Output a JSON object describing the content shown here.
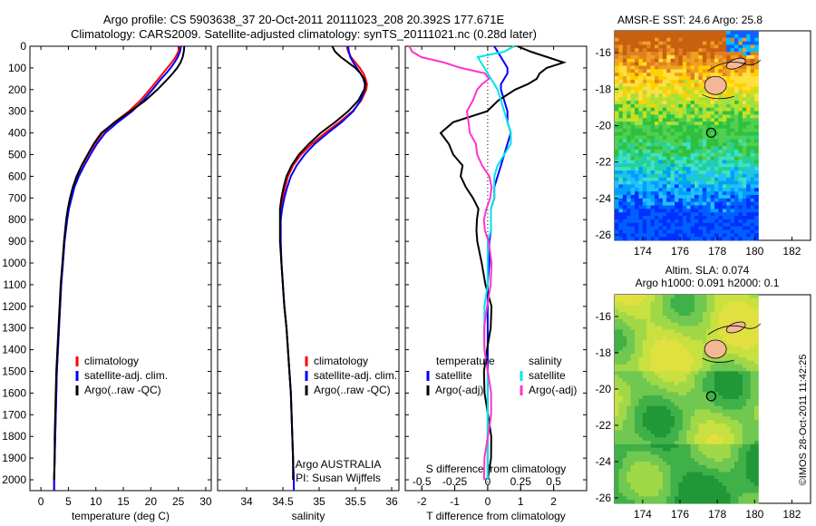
{
  "header": {
    "line1": "Argo profile: CS 5903638_37 20-Oct-2011 20111023_208 20.392S 177.671E",
    "line2": "Climatology: CARS2009. Satellite-adjusted climatology: synTS_20111021.nc (0.28d later)"
  },
  "credit": "©IMOS 28-Oct-2011 11:42:25",
  "colors": {
    "clim": "#ff0000",
    "sat": "#0000ff",
    "argo": "#000000",
    "sal_sat": "#00e5e5",
    "sal_argo": "#ff33cc"
  },
  "chart_data": [
    {
      "type": "line",
      "id": "temperature",
      "xlabel": "temperature (deg C)",
      "ylabel": "",
      "xlim": [
        -2,
        31
      ],
      "ylim": [
        0,
        2050
      ],
      "xticks": [
        0,
        5,
        10,
        15,
        20,
        25,
        30
      ],
      "yticks": [
        0,
        100,
        200,
        300,
        400,
        500,
        600,
        700,
        800,
        900,
        1000,
        1100,
        1200,
        1300,
        1400,
        1500,
        1600,
        1700,
        1800,
        1900,
        2000
      ],
      "depth": [
        0,
        25,
        50,
        75,
        100,
        125,
        150,
        200,
        250,
        300,
        350,
        400,
        450,
        500,
        550,
        600,
        650,
        700,
        750,
        800,
        900,
        1000,
        1100,
        1200,
        1300,
        1400,
        1500,
        1600,
        1700,
        1800,
        1900,
        2000,
        2050
      ],
      "series": [
        {
          "name": "climatology",
          "values": [
            25.3,
            25.0,
            24.5,
            23.8,
            23.0,
            22.2,
            21.4,
            19.8,
            18.1,
            16.0,
            13.4,
            11.2,
            9.8,
            8.6,
            7.5,
            6.6,
            5.9,
            5.4,
            5.0,
            4.7,
            4.3,
            4.0,
            3.7,
            3.5,
            3.3,
            3.1,
            2.9,
            2.8,
            2.7,
            2.6,
            2.5,
            2.4,
            2.4
          ]
        },
        {
          "name": "satellite-adj. clim.",
          "values": [
            25.5,
            25.3,
            24.9,
            24.3,
            23.6,
            22.8,
            21.9,
            20.3,
            18.6,
            16.6,
            14.0,
            11.7,
            10.2,
            9.0,
            7.9,
            6.9,
            6.1,
            5.6,
            5.1,
            4.8,
            4.3,
            4.0,
            3.7,
            3.5,
            3.3,
            3.1,
            2.9,
            2.8,
            2.7,
            2.6,
            2.5,
            2.4,
            2.4
          ]
        },
        {
          "name": "Argo(..raw -QC)",
          "values": [
            26.1,
            26.0,
            25.8,
            25.4,
            24.8,
            24.0,
            23.1,
            21.2,
            19.0,
            16.3,
            13.5,
            11.0,
            9.6,
            8.5,
            7.4,
            6.5,
            5.8,
            5.3,
            4.9,
            4.6,
            4.2,
            3.9,
            3.6,
            3.4,
            3.2,
            3.0,
            2.8,
            2.7,
            2.6,
            2.5,
            2.5,
            2.4,
            null
          ]
        }
      ],
      "legend": {
        "items": [
          "climatology",
          "satellite-adj. clim.",
          "Argo(..raw -QC)"
        ],
        "position": "lower-left"
      }
    },
    {
      "type": "line",
      "id": "salinity",
      "xlabel": "salinity",
      "xlim": [
        33.6,
        36.1
      ],
      "ylim": [
        0,
        2050
      ],
      "xticks": [
        34,
        34.5,
        35,
        35.5,
        36
      ],
      "xticklabels": [
        "34",
        "34.5",
        "35",
        "35.5",
        "36"
      ],
      "depth": [
        0,
        25,
        50,
        75,
        100,
        125,
        150,
        175,
        200,
        250,
        300,
        350,
        400,
        450,
        500,
        550,
        600,
        650,
        700,
        750,
        800,
        900,
        1000,
        1100,
        1200,
        1300,
        1400,
        1500,
        1600,
        1700,
        1800,
        1900,
        2000,
        2050
      ],
      "series": [
        {
          "name": "climatology",
          "values": [
            35.38,
            35.4,
            35.44,
            35.5,
            35.56,
            35.61,
            35.64,
            35.66,
            35.65,
            35.58,
            35.46,
            35.28,
            35.08,
            34.9,
            34.75,
            34.64,
            34.57,
            34.53,
            34.5,
            34.48,
            34.47,
            34.47,
            34.48,
            34.5,
            34.52,
            34.55,
            34.57,
            34.59,
            34.61,
            34.62,
            34.63,
            34.64,
            34.65,
            34.65
          ]
        },
        {
          "name": "satellite-adj. clim.",
          "values": [
            35.4,
            35.41,
            35.43,
            35.47,
            35.52,
            35.57,
            35.61,
            35.63,
            35.63,
            35.57,
            35.47,
            35.31,
            35.12,
            34.94,
            34.8,
            34.69,
            34.61,
            34.56,
            34.52,
            34.49,
            34.47,
            34.47,
            34.48,
            34.5,
            34.52,
            34.55,
            34.57,
            34.59,
            34.61,
            34.62,
            34.63,
            34.64,
            34.65,
            34.65
          ]
        },
        {
          "name": "Argo(..raw -QC)",
          "values": [
            35.18,
            35.22,
            35.3,
            35.4,
            35.5,
            35.57,
            35.62,
            35.64,
            35.62,
            35.54,
            35.4,
            35.22,
            35.02,
            34.86,
            34.72,
            34.62,
            34.55,
            34.51,
            34.48,
            34.46,
            34.46,
            34.46,
            34.48,
            34.5,
            34.52,
            34.55,
            34.57,
            34.59,
            34.61,
            34.62,
            34.63,
            34.64,
            34.64,
            null
          ]
        }
      ],
      "legend": {
        "items": [
          "climatology",
          "satellite-adj. clim.",
          "Argo(..raw -QC)"
        ],
        "position": "lower-left"
      },
      "annotation": [
        "Argo AUSTRALIA",
        "PI: Susan Wijffels"
      ]
    },
    {
      "type": "line",
      "id": "difference",
      "xlabel_top": "S difference from climatology",
      "xlabel": "T difference from climatology",
      "xlim": [
        -2.5,
        3.0
      ],
      "ylim": [
        0,
        2050
      ],
      "top_ticks": [
        -0.5,
        -0.25,
        0,
        0.25,
        0.5
      ],
      "top_ticklabels": [
        "-0.5",
        "-0.25",
        "0",
        "0.25",
        "0.5"
      ],
      "xticks": [
        -2,
        -1,
        0,
        1,
        2
      ],
      "depth": [
        0,
        25,
        50,
        75,
        100,
        125,
        150,
        175,
        200,
        250,
        300,
        350,
        400,
        450,
        500,
        550,
        600,
        650,
        700,
        750,
        800,
        850,
        900,
        1000,
        1100,
        1200,
        1300,
        1400,
        1500,
        1600,
        1700,
        1800,
        1900,
        2000
      ],
      "series": [
        {
          "name": "temperature satellite",
          "values": [
            0.2,
            0.3,
            0.4,
            0.5,
            0.6,
            0.6,
            0.5,
            0.4,
            0.4,
            0.5,
            0.6,
            0.6,
            0.7,
            0.6,
            0.5,
            0.4,
            0.3,
            0.2,
            0.2,
            0.1,
            0.1,
            0.1,
            0.05,
            0.05,
            0.0,
            0.0,
            0.0,
            0.0,
            0.0,
            0.0,
            0.0,
            0.0,
            0.0,
            0.0
          ]
        },
        {
          "name": "temperature Argo(-adj)",
          "values": [
            0.8,
            1.2,
            1.8,
            2.4,
            1.9,
            1.6,
            1.4,
            1.1,
            0.8,
            0.4,
            0.1,
            -1.0,
            -1.5,
            -1.3,
            -1.1,
            -0.7,
            -0.7,
            -0.6,
            -0.5,
            -0.4,
            -0.4,
            -0.3,
            -0.2,
            -0.1,
            -0.1,
            0.0,
            0.0,
            0.0,
            0.0,
            0.0,
            0.0,
            0.0,
            0.0,
            0.0
          ]
        },
        {
          "name": "salinity satellite",
          "values": [
            0.8,
            0.5,
            -0.3,
            -0.2,
            -0.1,
            0.0,
            0.1,
            0.2,
            0.3,
            0.4,
            0.5,
            0.6,
            0.7,
            0.7,
            0.5,
            0.3,
            0.2,
            0.2,
            0.2,
            0.1,
            0.1,
            0.1,
            0.0,
            0.0,
            0.0,
            -0.1,
            -0.1,
            -0.1,
            0.0,
            0.0,
            0.0,
            0.0,
            0.0,
            0.0
          ]
        },
        {
          "name": "salinity Argo(-adj)",
          "values": [
            -2.4,
            -2.2,
            -1.9,
            -1.3,
            -0.9,
            -0.2,
            0.0,
            -0.1,
            -0.2,
            -0.4,
            -0.7,
            -0.7,
            -0.6,
            -0.3,
            -0.2,
            -0.1,
            0.0,
            0.0,
            0.0,
            0.0,
            0.0,
            0.0,
            0.0,
            0.0,
            0.0,
            0.0,
            0.0,
            0.0,
            0.0,
            0.0,
            0.0,
            0.0,
            0.0,
            0.0
          ]
        }
      ],
      "legend": {
        "headers": [
          "temperature",
          "salinity"
        ],
        "items": [
          "satellite",
          "Argo(-adj)",
          "satellite",
          "Argo(-adj)"
        ],
        "position": "lower"
      }
    },
    {
      "type": "heatmap",
      "id": "sst_map",
      "title": "AMSR-E SST: 24.6 Argo: 25.8",
      "xlim": [
        172.5,
        183.0
      ],
      "ylim": [
        -26.3,
        -14.8
      ],
      "xticks": [
        174,
        176,
        178,
        180,
        182
      ],
      "yticks": [
        -16,
        -18,
        -20,
        -22,
        -24,
        -26
      ],
      "marker": {
        "lon": 177.671,
        "lat": -20.392
      }
    },
    {
      "type": "heatmap",
      "id": "sla_map",
      "title_lines": [
        "Altim. SLA: 0.074",
        "Argo h1000: 0.091 h2000: 0.1"
      ],
      "xlim": [
        172.5,
        183.0
      ],
      "ylim": [
        -26.3,
        -14.8
      ],
      "xticks": [
        174,
        176,
        178,
        180,
        182
      ],
      "yticks": [
        -16,
        -18,
        -20,
        -22,
        -24,
        -26
      ],
      "marker": {
        "lon": 177.671,
        "lat": -20.392
      }
    }
  ]
}
